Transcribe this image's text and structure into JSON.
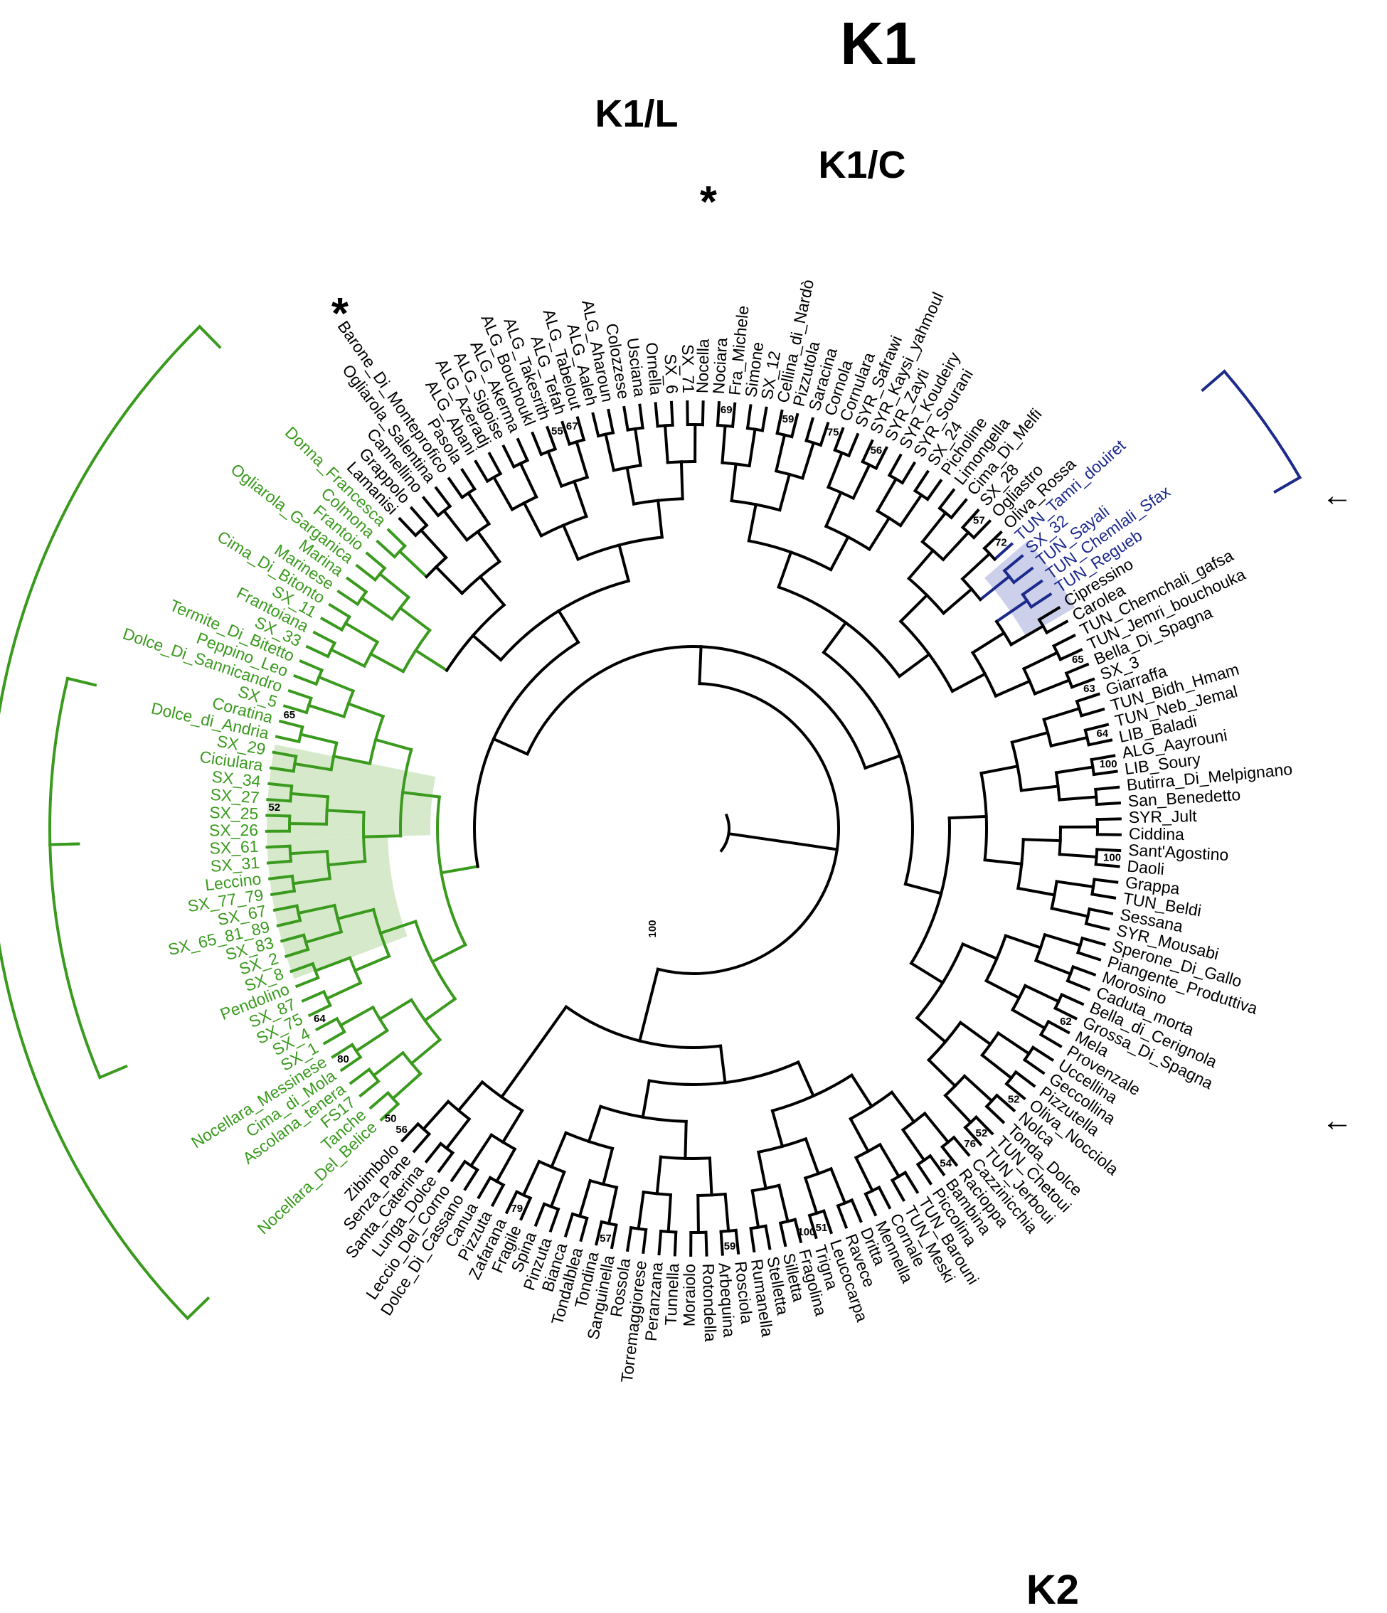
{
  "colors": {
    "k1": "#3a9a1e",
    "k2": "#1c2a8c",
    "other": "#000000",
    "k1_shade": "#cfe6c2",
    "k2_shade": "#c4c8e8"
  },
  "clades": {
    "k1": "K1",
    "k1l": "K1/L",
    "k1c": "K1/C",
    "k2": "K2"
  },
  "leaves": [
    {
      "name": "Nocellara_Del_Belice",
      "g": "k1"
    },
    {
      "name": "Tanche",
      "g": "k1"
    },
    {
      "name": "FS17",
      "g": "k1"
    },
    {
      "name": "Ascolana_tenera",
      "g": "k1"
    },
    {
      "name": "Cima_di_Mola",
      "g": "k1"
    },
    {
      "name": "Nocellara_Messinese",
      "g": "k1"
    },
    {
      "name": "SX_1",
      "g": "k1"
    },
    {
      "name": "SX_4",
      "g": "k1"
    },
    {
      "name": "SX_75",
      "g": "k1"
    },
    {
      "name": "SX_87",
      "g": "k1"
    },
    {
      "name": "Pendolino",
      "g": "k1"
    },
    {
      "name": "SX_8",
      "g": "k1"
    },
    {
      "name": "SX_2",
      "g": "k1"
    },
    {
      "name": "SX_83",
      "g": "k1"
    },
    {
      "name": "SX_65_81_89",
      "g": "k1"
    },
    {
      "name": "SX_67",
      "g": "k1"
    },
    {
      "name": "SX_77_79",
      "g": "k1"
    },
    {
      "name": "Leccino",
      "g": "k1"
    },
    {
      "name": "SX_31",
      "g": "k1"
    },
    {
      "name": "SX_61",
      "g": "k1"
    },
    {
      "name": "SX_26",
      "g": "k1"
    },
    {
      "name": "SX_25",
      "g": "k1"
    },
    {
      "name": "SX_27",
      "g": "k1"
    },
    {
      "name": "SX_34",
      "g": "k1"
    },
    {
      "name": "Ciciulara",
      "g": "k1"
    },
    {
      "name": "SX_29",
      "g": "k1"
    },
    {
      "name": "Dolce_di_Andria",
      "g": "k1"
    },
    {
      "name": "Coratina",
      "g": "k1"
    },
    {
      "name": "SX_5",
      "g": "k1"
    },
    {
      "name": "Dolce_Di_Sannicandro",
      "g": "k1"
    },
    {
      "name": "Peppino_Leo",
      "g": "k1"
    },
    {
      "name": "Termite_Di_Bitetto",
      "g": "k1"
    },
    {
      "name": "SX_33",
      "g": "k1"
    },
    {
      "name": "Frantoiana",
      "g": "k1"
    },
    {
      "name": "SX_11",
      "g": "k1"
    },
    {
      "name": "Cima_Di_Bitonto",
      "g": "k1"
    },
    {
      "name": "Marinese",
      "g": "k1"
    },
    {
      "name": "Marina",
      "g": "k1"
    },
    {
      "name": "Ogliarola_Garganica",
      "g": "k1"
    },
    {
      "name": "Frantoio",
      "g": "k1"
    },
    {
      "name": "Colmona",
      "g": "k1"
    },
    {
      "name": "Donna_Francesca",
      "g": "k1"
    },
    {
      "name": "Lamanisi",
      "g": "o"
    },
    {
      "name": "Grappolo",
      "g": "o"
    },
    {
      "name": "Cannellino",
      "g": "o"
    },
    {
      "name": "Ogliarola_Salentina",
      "g": "o"
    },
    {
      "name": "Barone_Di_Monteprofico",
      "g": "o"
    },
    {
      "name": "Pasola",
      "g": "o"
    },
    {
      "name": "ALG_Abani",
      "g": "o"
    },
    {
      "name": "ALG_Azeradj",
      "g": "o"
    },
    {
      "name": "ALG_Sigoise",
      "g": "o"
    },
    {
      "name": "ALG_Akerma",
      "g": "o"
    },
    {
      "name": "ALG_Bouchoukl",
      "g": "o"
    },
    {
      "name": "ALG_Takesrith",
      "g": "o"
    },
    {
      "name": "ALG_Tefah",
      "g": "o"
    },
    {
      "name": "ALG_Tabelout",
      "g": "o"
    },
    {
      "name": "ALG_Aaleh",
      "g": "o"
    },
    {
      "name": "ALG_Aharoun",
      "g": "o"
    },
    {
      "name": "Colozzese",
      "g": "o"
    },
    {
      "name": "Usciana",
      "g": "o"
    },
    {
      "name": "Ornella",
      "g": "o"
    },
    {
      "name": "SX_6",
      "g": "o"
    },
    {
      "name": "SX_71",
      "g": "o"
    },
    {
      "name": "Nocella",
      "g": "o"
    },
    {
      "name": "Nociara",
      "g": "o"
    },
    {
      "name": "Fra_Michele",
      "g": "o"
    },
    {
      "name": "Simone",
      "g": "o"
    },
    {
      "name": "SX_12",
      "g": "o"
    },
    {
      "name": "Cellina_di_Nardò",
      "g": "o"
    },
    {
      "name": "Pizzutola",
      "g": "o"
    },
    {
      "name": "Saracina",
      "g": "o"
    },
    {
      "name": "Cornola",
      "g": "o"
    },
    {
      "name": "Cornulara",
      "g": "o"
    },
    {
      "name": "SYR_Safrawi",
      "g": "o"
    },
    {
      "name": "SYR_Kaysi_yahmoul",
      "g": "o"
    },
    {
      "name": "SYR_Zayti",
      "g": "o"
    },
    {
      "name": "SYR_Koudeiry",
      "g": "o"
    },
    {
      "name": "SYR_Sourani",
      "g": "o"
    },
    {
      "name": "SX_24",
      "g": "o"
    },
    {
      "name": "Picholine",
      "g": "o"
    },
    {
      "name": "Limongella",
      "g": "o"
    },
    {
      "name": "Cima_Di_Melfi",
      "g": "o"
    },
    {
      "name": "SX_28",
      "g": "o"
    },
    {
      "name": "Ogliastro",
      "g": "o"
    },
    {
      "name": "Oliva_Rossa",
      "g": "o"
    },
    {
      "name": "TUN_Tamri_douiret",
      "g": "k2"
    },
    {
      "name": "SX_32",
      "g": "k2"
    },
    {
      "name": "TUN_Sayali",
      "g": "k2"
    },
    {
      "name": "TUN_Chemlali_Sfax",
      "g": "k2"
    },
    {
      "name": "TUN_Regueb",
      "g": "k2"
    },
    {
      "name": "Cipressino",
      "g": "o"
    },
    {
      "name": "Carolea",
      "g": "o"
    },
    {
      "name": "TUN_Chemchali_gafsa",
      "g": "o"
    },
    {
      "name": "TUN_Jemri_bouchouka",
      "g": "o"
    },
    {
      "name": "Bella_Di_Spagna",
      "g": "o"
    },
    {
      "name": "SX_3",
      "g": "o"
    },
    {
      "name": "Giarraffa",
      "g": "o"
    },
    {
      "name": "TUN_Bidh_Hmam",
      "g": "o"
    },
    {
      "name": "TUN_Neb_Jemal",
      "g": "o"
    },
    {
      "name": "LIB_Baladi",
      "g": "o"
    },
    {
      "name": "ALG_Aayrouni",
      "g": "o"
    },
    {
      "name": "LIB_Soury",
      "g": "o"
    },
    {
      "name": "Butirra_Di_Melpignano",
      "g": "o"
    },
    {
      "name": "San_Benedetto",
      "g": "o"
    },
    {
      "name": "SYR_Jult",
      "g": "o"
    },
    {
      "name": "Ciddina",
      "g": "o"
    },
    {
      "name": "Sant'Agostino",
      "g": "o"
    },
    {
      "name": "Daoli",
      "g": "o"
    },
    {
      "name": "Grappa",
      "g": "o"
    },
    {
      "name": "TUN_Beldi",
      "g": "o"
    },
    {
      "name": "Sessana",
      "g": "o"
    },
    {
      "name": "SYR_Mousabi",
      "g": "o"
    },
    {
      "name": "Sperone_Di_Gallo",
      "g": "o"
    },
    {
      "name": "Piangente_Produttiva",
      "g": "o"
    },
    {
      "name": "Morosino",
      "g": "o"
    },
    {
      "name": "Caduta_morta",
      "g": "o"
    },
    {
      "name": "Bella_di_Cerignola",
      "g": "o"
    },
    {
      "name": "Grossa_Di_Spagna",
      "g": "o"
    },
    {
      "name": "Mela",
      "g": "o"
    },
    {
      "name": "Provenzale",
      "g": "o"
    },
    {
      "name": "Uccellina",
      "g": "o"
    },
    {
      "name": "Geccollina",
      "g": "o"
    },
    {
      "name": "Pizzutella",
      "g": "o"
    },
    {
      "name": "Oliva_Nocciola",
      "g": "o"
    },
    {
      "name": "Nolca",
      "g": "o"
    },
    {
      "name": "Tonda_Dolce",
      "g": "o"
    },
    {
      "name": "TUN_Chetoui",
      "g": "o"
    },
    {
      "name": "TUN_Jerboui",
      "g": "o"
    },
    {
      "name": "Cazzinicchia",
      "g": "o"
    },
    {
      "name": "Racioppa",
      "g": "o"
    },
    {
      "name": "Bambina",
      "g": "o"
    },
    {
      "name": "Piccolina",
      "g": "o"
    },
    {
      "name": "TUN_Barouni",
      "g": "o"
    },
    {
      "name": "TUN_Meski",
      "g": "o"
    },
    {
      "name": "Cornale",
      "g": "o"
    },
    {
      "name": "Mennella",
      "g": "o"
    },
    {
      "name": "Dritta",
      "g": "o"
    },
    {
      "name": "Ravece",
      "g": "o"
    },
    {
      "name": "Leucocarpa",
      "g": "o"
    },
    {
      "name": "Trigna",
      "g": "o"
    },
    {
      "name": "Fragolina",
      "g": "o"
    },
    {
      "name": "Silletta",
      "g": "o"
    },
    {
      "name": "Stelletta",
      "g": "o"
    },
    {
      "name": "Rumanella",
      "g": "o"
    },
    {
      "name": "Rosciola",
      "g": "o"
    },
    {
      "name": "Arbequina",
      "g": "o"
    },
    {
      "name": "Rotondella",
      "g": "o"
    },
    {
      "name": "Moraiolo",
      "g": "o"
    },
    {
      "name": "Tunnella",
      "g": "o"
    },
    {
      "name": "Peranzana",
      "g": "o"
    },
    {
      "name": "Torremaggiorese",
      "g": "o"
    },
    {
      "name": "Rossola",
      "g": "o"
    },
    {
      "name": "Sanguinella",
      "g": "o"
    },
    {
      "name": "Tondina",
      "g": "o"
    },
    {
      "name": "Tondalblea",
      "g": "o"
    },
    {
      "name": "Bianca",
      "g": "o"
    },
    {
      "name": "Pinzuta",
      "g": "o"
    },
    {
      "name": "Spina",
      "g": "o"
    },
    {
      "name": "Fragile",
      "g": "o"
    },
    {
      "name": "Zafarana",
      "g": "o"
    },
    {
      "name": "Pizzuta",
      "g": "o"
    },
    {
      "name": "Canua",
      "g": "o"
    },
    {
      "name": "Dolce_Di_Cassano",
      "g": "o"
    },
    {
      "name": "Leccio_Del_Corno",
      "g": "o"
    },
    {
      "name": "Lunga_Dolce",
      "g": "o"
    },
    {
      "name": "Santa_Caterina",
      "g": "o"
    },
    {
      "name": "Senza_Pane",
      "g": "o"
    },
    {
      "name": "Zibimbolo",
      "g": "o"
    }
  ],
  "bootstrap": [
    {
      "value": "80",
      "leaf": 4
    },
    {
      "value": "64",
      "leaf": 7
    },
    {
      "value": "52",
      "leaf": 21
    },
    {
      "value": "65",
      "leaf": 27
    },
    {
      "value": "55",
      "leaf": 53
    },
    {
      "value": "67",
      "leaf": 54
    },
    {
      "value": "69",
      "leaf": 64
    },
    {
      "value": "59",
      "leaf": 68
    },
    {
      "value": "75",
      "leaf": 71
    },
    {
      "value": "56",
      "leaf": 74
    },
    {
      "value": "57",
      "leaf": 82
    },
    {
      "value": "72",
      "leaf": 84
    },
    {
      "value": "65",
      "leaf": 93
    },
    {
      "value": "63",
      "leaf": 95
    },
    {
      "value": "64",
      "leaf": 98
    },
    {
      "value": "100",
      "leaf": 100
    },
    {
      "value": "100",
      "leaf": 106
    },
    {
      "value": "62",
      "leaf": 117
    },
    {
      "value": "52",
      "leaf": 123
    },
    {
      "value": "52",
      "leaf": 126
    },
    {
      "value": "76",
      "leaf": 127
    },
    {
      "value": "54",
      "leaf": 129
    },
    {
      "value": "51",
      "leaf": 138
    },
    {
      "value": "100",
      "leaf": 139
    },
    {
      "value": "59",
      "leaf": 144
    },
    {
      "value": "57",
      "leaf": 152
    },
    {
      "value": "79",
      "leaf": 158
    },
    {
      "value": "56",
      "leaf": 167
    },
    {
      "value": "50",
      "leaf": 168
    }
  ],
  "root_bootstrap": "100",
  "markers": {
    "asterisk": "*",
    "arrow": "←"
  }
}
